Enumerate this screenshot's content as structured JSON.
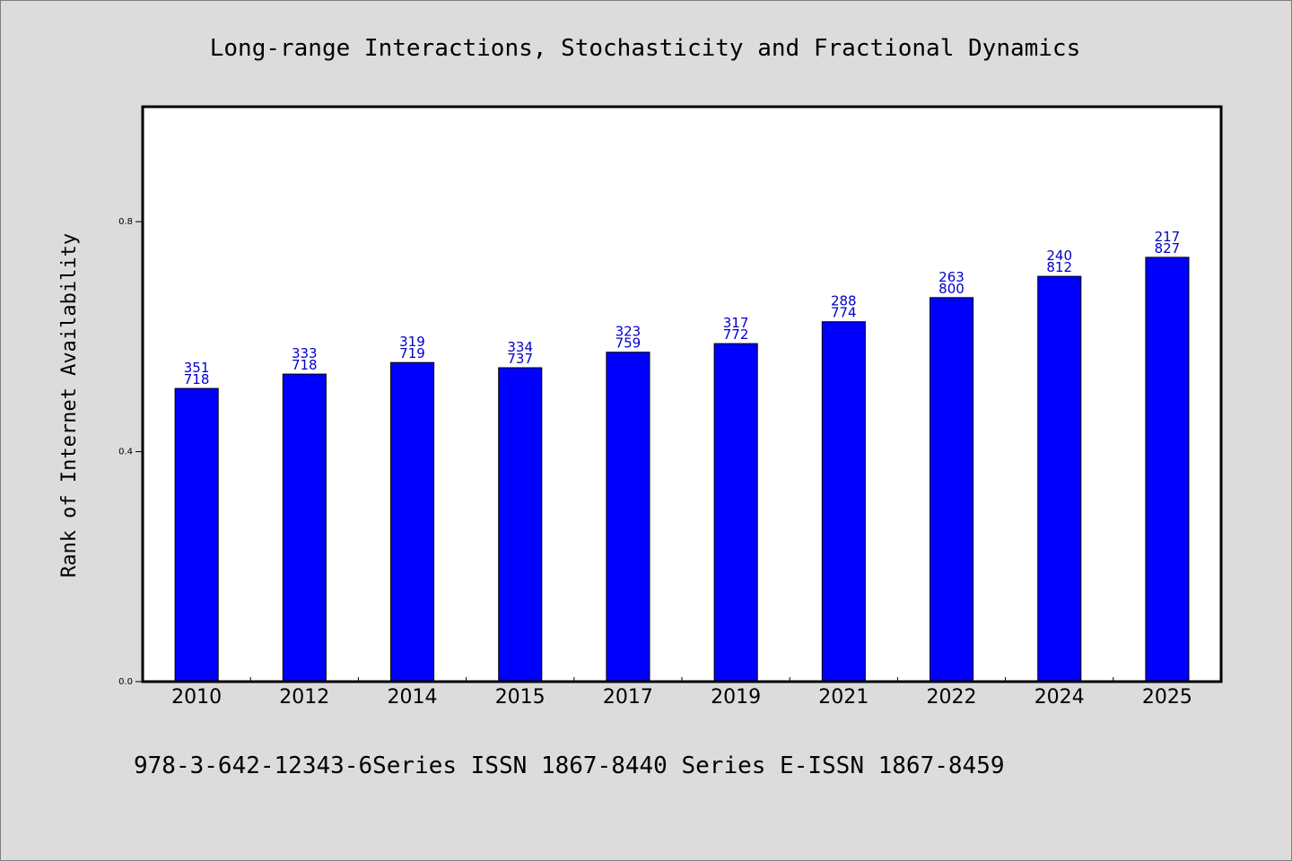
{
  "chart_data": {
    "type": "bar",
    "title": "Long-range Interactions, Stochasticity and Fractional Dynamics",
    "xlabel": "",
    "ylabel": "Rank of Internet Availability",
    "ylim": [
      0,
      1.0
    ],
    "yticks": [
      0.0,
      0.4,
      0.8
    ],
    "ytick_labels": [
      "0.0",
      "0.4",
      "0.8"
    ],
    "categories": [
      "2010",
      "2012",
      "2014",
      "2015",
      "2017",
      "2019",
      "2021",
      "2022",
      "2024",
      "2025"
    ],
    "values": [
      0.51,
      0.535,
      0.555,
      0.546,
      0.573,
      0.588,
      0.626,
      0.668,
      0.705,
      0.738
    ],
    "labels_top": [
      "351",
      "333",
      "319",
      "334",
      "323",
      "317",
      "288",
      "263",
      "240",
      "217"
    ],
    "labels_bottom": [
      "718",
      "718",
      "719",
      "737",
      "759",
      "772",
      "774",
      "800",
      "812",
      "827"
    ],
    "bar_color": "#0000ff",
    "label_color": "#0000cc",
    "grid": false,
    "legend": "none"
  },
  "footer": "978-3-642-12343-6Series ISSN 1867-8440 Series E-ISSN 1867-8459"
}
